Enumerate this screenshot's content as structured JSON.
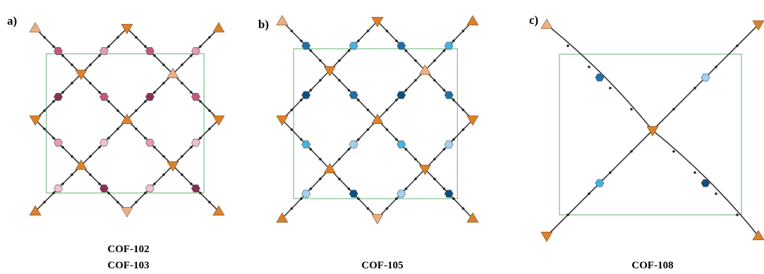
{
  "panels": [
    {
      "label": "a)",
      "captions": [
        "COF-102",
        "COF-103"
      ]
    },
    {
      "label": "b)",
      "captions": [
        "COF-105"
      ]
    },
    {
      "label": "c)",
      "captions": [
        "COF-108"
      ]
    }
  ]
}
